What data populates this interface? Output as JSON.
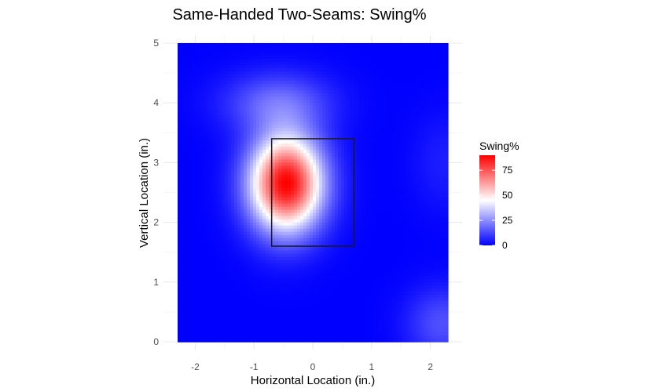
{
  "chart_data": {
    "type": "heatmap",
    "title": "Same-Handed Two-Seams: Swing%",
    "xlabel": "Horizontal Location (in.)",
    "ylabel": "Vertical Location (in.)",
    "xlim": [
      -2.3,
      2.3
    ],
    "ylim": [
      0,
      5
    ],
    "x_ticks": [
      -2,
      -1,
      0,
      1,
      2
    ],
    "y_ticks": [
      0,
      1,
      2,
      3,
      4,
      5
    ],
    "x_tick_labels": [
      "-2",
      "-1",
      "0",
      "1",
      "2"
    ],
    "y_tick_labels": [
      "0",
      "1",
      "2",
      "3",
      "4",
      "5"
    ],
    "grid": true,
    "z_name": "Swing%",
    "color_scale": {
      "low": "#0000ff",
      "mid": "#ffffff",
      "high": "#ff0000",
      "midpoint": 45,
      "min": 0,
      "max": 90,
      "breaks": [
        0,
        25,
        50,
        75
      ],
      "break_labels": [
        "0",
        "25",
        "50",
        "75"
      ]
    },
    "strike_zone": {
      "x": [
        -0.7,
        0.7
      ],
      "y": [
        1.6,
        3.4
      ]
    },
    "hot_spots": [
      {
        "x": -0.45,
        "y": 2.65,
        "peak": 90,
        "sx": 0.62,
        "sy": 0.8
      },
      {
        "x": 2.2,
        "y": 0.3,
        "peak": 14,
        "sx": 0.6,
        "sy": 0.6
      },
      {
        "x": 2.2,
        "y": 3.0,
        "peak": 5,
        "sx": 0.5,
        "sy": 0.8
      },
      {
        "x": -0.6,
        "y": 4.0,
        "peak": 18,
        "sx": 0.9,
        "sy": 0.5
      }
    ],
    "legend_position": "right"
  }
}
